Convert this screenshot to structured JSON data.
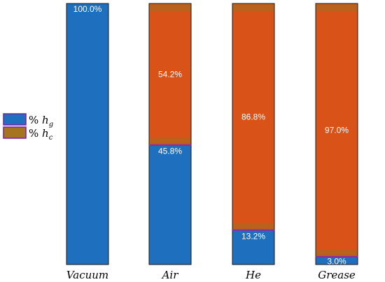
{
  "chart_data": {
    "type": "bar",
    "stacked": true,
    "categories": [
      "Vacuum",
      "Air",
      "He",
      "Grease"
    ],
    "ylim": [
      0,
      100
    ],
    "series": [
      {
        "name": "% h_g",
        "color": "#1f6fbf",
        "values": [
          100.0,
          45.8,
          13.2,
          3.0
        ],
        "labels": [
          "100.0%",
          "45.8%",
          "13.2%",
          "3.0%"
        ]
      },
      {
        "name": "% h_c",
        "color": "#d95319",
        "values": [
          0.0,
          54.2,
          86.8,
          97.0
        ],
        "labels": [
          "",
          "54.2%",
          "86.8%",
          "97.0%"
        ]
      }
    ],
    "legend": {
      "placement": "left",
      "entries": [
        {
          "symbol": "%",
          "var": "h",
          "sub": "g",
          "color": "#1f6fbf"
        },
        {
          "symbol": "%",
          "var": "h",
          "sub": "c",
          "color": "#a6731e"
        }
      ]
    }
  }
}
